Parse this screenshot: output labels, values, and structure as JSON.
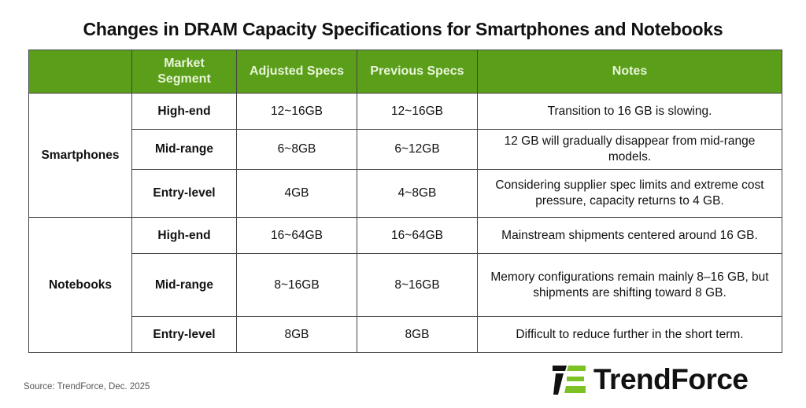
{
  "title": "Changes in DRAM Capacity Specifications for Smartphones and Notebooks",
  "table": {
    "headers": [
      "",
      "Market Segment",
      "Adjusted Specs",
      "Previous Specs",
      "Notes"
    ],
    "groups": [
      {
        "device": "Smartphones",
        "rows": [
          {
            "segment": "High-end",
            "adjusted": "12~16GB",
            "previous": "12~16GB",
            "notes": "Transition to 16 GB is slowing."
          },
          {
            "segment": "Mid-range",
            "adjusted": "6~8GB",
            "previous": "6~12GB",
            "notes": "12 GB will gradually disappear from mid-range models."
          },
          {
            "segment": "Entry-level",
            "adjusted": "4GB",
            "previous": "4~8GB",
            "notes": "Considering supplier spec limits and extreme cost pressure, capacity returns to 4 GB."
          }
        ]
      },
      {
        "device": "Notebooks",
        "rows": [
          {
            "segment": "High-end",
            "adjusted": "16~64GB",
            "previous": "16~64GB",
            "notes": "Mainstream shipments centered around 16 GB."
          },
          {
            "segment": "Mid-range",
            "adjusted": "8~16GB",
            "previous": "8~16GB",
            "notes": "Memory configurations remain mainly 8–16 GB, but shipments are shifting toward 8 GB."
          },
          {
            "segment": "Entry-level",
            "adjusted": "8GB",
            "previous": "8GB",
            "notes": "Difficult to reduce further in the short term."
          }
        ]
      }
    ]
  },
  "source": "Source: TrendForce,  Dec. 2025",
  "logo": {
    "text": "TrendForce",
    "icon": "trendforce-logo-icon"
  },
  "watermark": "TrendForce",
  "colors": {
    "header_bg": "#5a9e1a",
    "header_text": "#e8f5d8",
    "logo_green": "#7cc225"
  }
}
